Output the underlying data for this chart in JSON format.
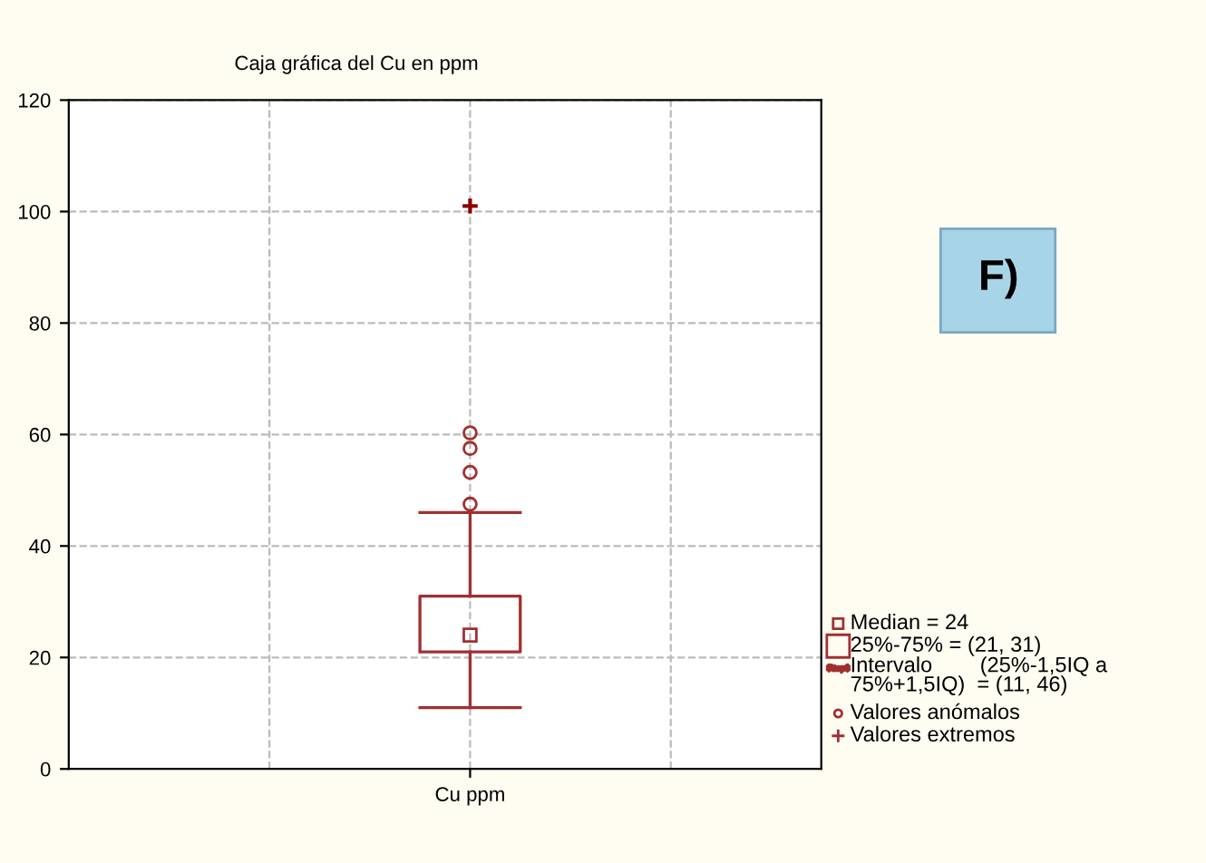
{
  "chart_data": {
    "type": "box",
    "title": "Caja gráfica del Cu en ppm",
    "categories": [
      "Cu ppm"
    ],
    "series": [
      {
        "color": "#a03030",
        "boxes": [
          {
            "low": 11,
            "q1": 21,
            "median": 24,
            "q3": 31,
            "high": 46,
            "outliers": [
              47.5,
              53.2,
              57.5,
              60.3
            ]
          }
        ]
      },
      {
        "type": "scatter",
        "color": "#8b0000",
        "x": [
          "Cu ppm"
        ],
        "values": [
          101
        ],
        "marker": "cross"
      }
    ],
    "ylim": [
      0,
      120
    ],
    "yticks": [
      0,
      20,
      40,
      60,
      80,
      100,
      120
    ],
    "grid": true,
    "annotations": [
      "F)",
      "Median = 24",
      "25%-75% = (21, 31)",
      "Intervalo        (25%-1,5IQ a\n75%+1,5IQ)  = (11, 46)",
      "Valores anómalos",
      "Valores extremos"
    ]
  }
}
